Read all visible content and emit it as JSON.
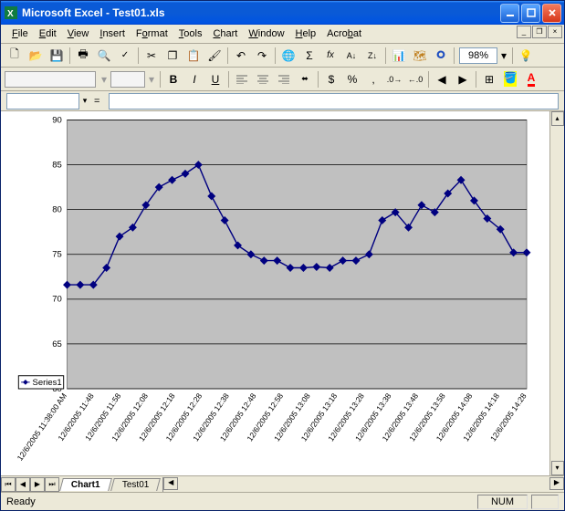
{
  "window": {
    "title": "Microsoft Excel - Test01.xls"
  },
  "menus": [
    "File",
    "Edit",
    "View",
    "Insert",
    "Format",
    "Tools",
    "Chart",
    "Window",
    "Help",
    "Acrobat"
  ],
  "toolbar": {
    "zoom_value": "98%"
  },
  "status": {
    "ready": "Ready",
    "num": "NUM"
  },
  "tabs": {
    "active": "Chart1",
    "inactive": "Test01"
  },
  "chart": {
    "type": "line",
    "plot_area_bg": "#c0c0c0",
    "chart_bg": "#ffffff",
    "grid_color": "#000000",
    "series_color": "#000080",
    "marker_fill": "#000080",
    "marker_shape": "diamond",
    "marker_size": 4,
    "line_width": 1.5,
    "y_axis": {
      "min": 60,
      "max": 90,
      "step": 5,
      "label_fontsize": 10
    },
    "legend": {
      "label": "Series1",
      "position": "left-bottom"
    },
    "x_labels": [
      "12/6/2005 11:38:00 AM",
      "12/6/2005 11:48",
      "12/6/2005 11:58",
      "12/6/2005 12:08",
      "12/6/2005 12:18",
      "12/6/2005 12:28",
      "12/6/2005 12:38",
      "12/6/2005 12:48",
      "12/6/2005 12:58",
      "12/6/2005 13:08",
      "12/6/2005 13:18",
      "12/6/2005 13:28",
      "12/6/2005 13:38",
      "12/6/2005 13:48",
      "12/6/2005 13:58",
      "12/6/2005 14:08",
      "12/6/2005 14:18",
      "12/6/2005 14:28"
    ],
    "y_values": [
      71.6,
      71.6,
      71.6,
      73.5,
      77.0,
      78.0,
      80.5,
      82.5,
      83.3,
      84.0,
      85.0,
      81.5,
      78.8,
      76.0,
      75.0,
      74.3,
      74.3,
      73.5,
      73.5,
      73.6,
      73.5,
      74.3,
      74.3,
      75.0,
      78.8,
      79.7,
      78.0,
      80.5,
      79.7,
      81.8,
      83.3,
      81.0,
      79.0,
      77.8,
      75.2,
      75.2
    ]
  }
}
